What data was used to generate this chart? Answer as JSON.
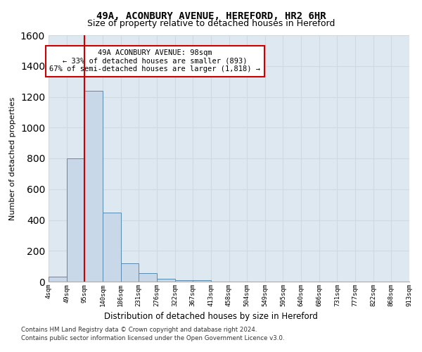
{
  "title": "49A, ACONBURY AVENUE, HEREFORD, HR2 6HR",
  "subtitle": "Size of property relative to detached houses in Hereford",
  "xlabel": "Distribution of detached houses by size in Hereford",
  "ylabel": "Number of detached properties",
  "footer_line1": "Contains HM Land Registry data © Crown copyright and database right 2024.",
  "footer_line2": "Contains public sector information licensed under the Open Government Licence v3.0.",
  "bin_labels": [
    "4sqm",
    "49sqm",
    "95sqm",
    "140sqm",
    "186sqm",
    "231sqm",
    "276sqm",
    "322sqm",
    "367sqm",
    "413sqm",
    "458sqm",
    "504sqm",
    "549sqm",
    "595sqm",
    "640sqm",
    "686sqm",
    "731sqm",
    "777sqm",
    "822sqm",
    "868sqm",
    "913sqm"
  ],
  "bar_values": [
    30,
    800,
    1240,
    450,
    120,
    55,
    20,
    10,
    10,
    0,
    0,
    0,
    0,
    0,
    0,
    0,
    0,
    0,
    0,
    0
  ],
  "bar_color": "#c8d8e8",
  "bar_edge_color": "#5a8ab0",
  "property_line_x": 2,
  "ylim": [
    0,
    1600
  ],
  "yticks": [
    0,
    200,
    400,
    600,
    800,
    1000,
    1200,
    1400,
    1600
  ],
  "annotation_text_line1": "49A ACONBURY AVENUE: 98sqm",
  "annotation_text_line2": "← 33% of detached houses are smaller (893)",
  "annotation_text_line3": "67% of semi-detached houses are larger (1,818) →",
  "annotation_box_color": "#ffffff",
  "annotation_box_edge": "#cc0000",
  "red_line_color": "#cc0000",
  "grid_color": "#d0d8e0",
  "background_color": "#dde8f0"
}
